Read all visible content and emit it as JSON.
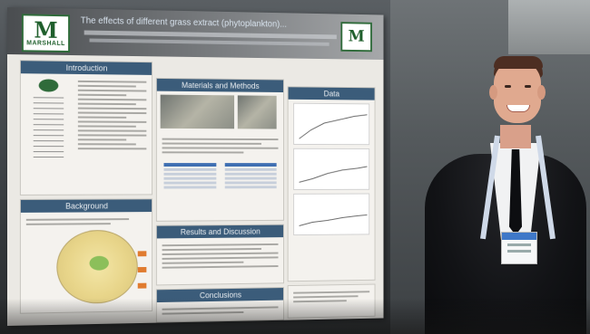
{
  "poster": {
    "title": "The effects of different grass extract (phytoplankton)...",
    "logo_text": "MARSHALL",
    "logo_letter": "M",
    "sections": {
      "introduction": "Introduction",
      "background": "Background",
      "materials_methods": "Materials and Methods",
      "results_discussion": "Results and Discussion",
      "data": "Data",
      "conclusions": "Conclusions"
    }
  },
  "colors": {
    "panel_header": "#3b5c7a",
    "marshall_green": "#1f5f2c"
  }
}
